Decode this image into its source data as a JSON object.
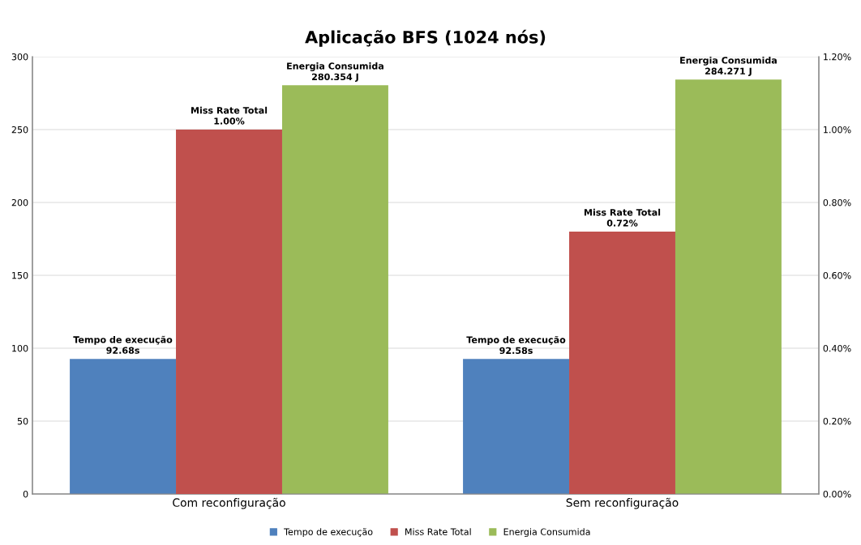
{
  "chart_data": {
    "type": "bar",
    "title": "Aplicação BFS (1024 nós)",
    "categories": [
      "Com reconfiguração",
      "Sem reconfiguração"
    ],
    "series": [
      {
        "name": "Tempo de execução",
        "color": "#4f81bd",
        "values": [
          92.68,
          92.58
        ],
        "value_labels": [
          "Tempo de execução\n92.68s",
          "Tempo de execução\n92.58s"
        ]
      },
      {
        "name": "Miss Rate Total",
        "color": "#c0504d",
        "values": [
          1.0,
          0.72
        ],
        "axis": "y2",
        "value_labels": [
          "Miss Rate Total\n1.00%",
          "Miss Rate Total\n0.72%"
        ]
      },
      {
        "name": "Energia Consumida",
        "color": "#9bbb59",
        "values": [
          280.354,
          284.271
        ],
        "value_labels": [
          "Energia Consumida\n280.354 J",
          "Energia Consumida\n284.271 J"
        ]
      }
    ],
    "ylim": [
      0,
      300
    ],
    "yticks": [
      0,
      50,
      100,
      150,
      200,
      250,
      300
    ],
    "y2lim": [
      0,
      1.2
    ],
    "y2ticks": [
      {
        "value": 0,
        "label": "0.00%"
      },
      {
        "value": 0.2,
        "label": "0.20%"
      },
      {
        "value": 0.4,
        "label": "0.40%"
      },
      {
        "value": 0.6,
        "label": "0.60%"
      },
      {
        "value": 0.8,
        "label": "0.80%"
      },
      {
        "value": 1.0,
        "label": "1.00%"
      },
      {
        "value": 1.2,
        "label": "1.20%"
      }
    ],
    "grid": "y",
    "legend": "bottom"
  }
}
